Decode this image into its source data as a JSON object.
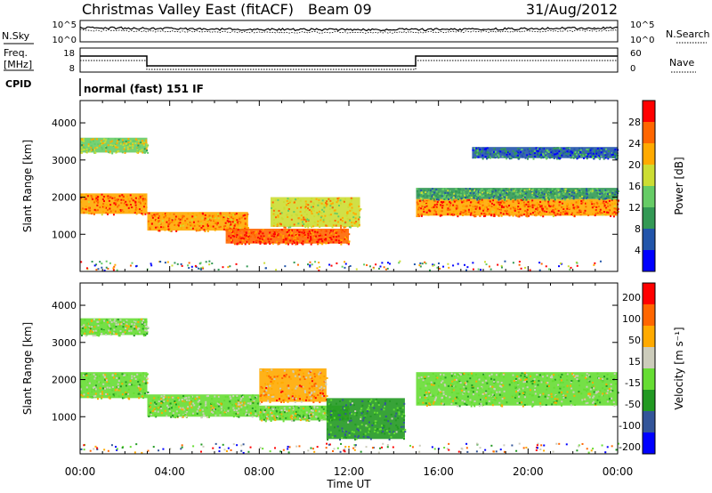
{
  "header": {
    "title": "Christmas Valley East (fitACF)",
    "beam": "Beam 09",
    "date": "31/Aug/2012"
  },
  "top_panels": {
    "nsky_label": "N.Sky",
    "nsky_ticks": [
      "10^5",
      "10^0"
    ],
    "nsearch_label": "N.Search",
    "freq_label_1": "Freq.",
    "freq_label_2": "[MHz]",
    "freq_ticks": [
      "18",
      "8"
    ],
    "nave_label": "Nave",
    "nave_ticks": [
      "60",
      "0"
    ],
    "cpid_label": "CPID",
    "cpid_value": "normal (fast) 151 IF"
  },
  "chart_data": [
    {
      "type": "heatmap",
      "name": "power",
      "ylabel": "Slant Range [km]",
      "ylim": [
        0,
        4600
      ],
      "yticks": [
        "1000",
        "2000",
        "3000",
        "4000"
      ],
      "xlim": [
        "00:00",
        "24:00"
      ],
      "colorbar_label": "Power [dB]",
      "colorbar_ticks": [
        "4",
        "8",
        "12",
        "16",
        "20",
        "24",
        "28"
      ],
      "colors": [
        "#0000ff",
        "#2255aa",
        "#339955",
        "#66cc66",
        "#ccdd33",
        "#ffaa00",
        "#ff6600",
        "#ff0000"
      ],
      "bands": [
        {
          "t0": 0.0,
          "t1": 3.0,
          "r0": 1550,
          "r1": 2100,
          "level": 0.85
        },
        {
          "t0": 0.0,
          "t1": 3.0,
          "r0": 3200,
          "r1": 3600,
          "level": 0.55
        },
        {
          "t0": 3.0,
          "t1": 7.5,
          "r0": 1100,
          "r1": 1600,
          "level": 0.8
        },
        {
          "t0": 6.5,
          "t1": 12.0,
          "r0": 750,
          "r1": 1150,
          "level": 0.9
        },
        {
          "t0": 8.5,
          "t1": 12.5,
          "r0": 1200,
          "r1": 2000,
          "level": 0.65
        },
        {
          "t0": 15.0,
          "t1": 24.0,
          "r0": 1500,
          "r1": 1950,
          "level": 0.85
        },
        {
          "t0": 15.0,
          "t1": 24.0,
          "r0": 1950,
          "r1": 2250,
          "level": 0.35
        },
        {
          "t0": 17.5,
          "t1": 24.0,
          "r0": 3050,
          "r1": 3350,
          "level": 0.2
        }
      ]
    },
    {
      "type": "heatmap",
      "name": "velocity",
      "ylabel": "Slant Range [km]",
      "xlabel": "Time UT",
      "ylim": [
        0,
        4600
      ],
      "yticks": [
        "1000",
        "2000",
        "3000",
        "4000"
      ],
      "xticks": [
        "00:00",
        "04:00",
        "08:00",
        "12:00",
        "16:00",
        "20:00",
        "00:00"
      ],
      "colorbar_label": "Velocity [m s⁻¹]",
      "colorbar_ticks": [
        "200",
        "100",
        "50",
        "15",
        "-15",
        "-50",
        "-100",
        "-200"
      ],
      "colors": [
        "#0000ff",
        "#335599",
        "#229922",
        "#66dd33",
        "#ccccbb",
        "#ffaa00",
        "#ff6600",
        "#ff0000"
      ],
      "bands": [
        {
          "t0": 0.0,
          "t1": 3.0,
          "r0": 1500,
          "r1": 2200,
          "level": 0.5
        },
        {
          "t0": 0.0,
          "t1": 3.0,
          "r0": 3200,
          "r1": 3650,
          "level": 0.5
        },
        {
          "t0": 3.0,
          "t1": 8.0,
          "r0": 1000,
          "r1": 1600,
          "level": 0.5
        },
        {
          "t0": 8.0,
          "t1": 12.0,
          "r0": 900,
          "r1": 1300,
          "level": 0.5
        },
        {
          "t0": 8.0,
          "t1": 11.0,
          "r0": 1400,
          "r1": 2300,
          "level": 0.75
        },
        {
          "t0": 11.0,
          "t1": 14.5,
          "r0": 400,
          "r1": 1500,
          "level": 0.3
        },
        {
          "t0": 15.0,
          "t1": 24.0,
          "r0": 1300,
          "r1": 2200,
          "level": 0.5
        }
      ]
    }
  ]
}
